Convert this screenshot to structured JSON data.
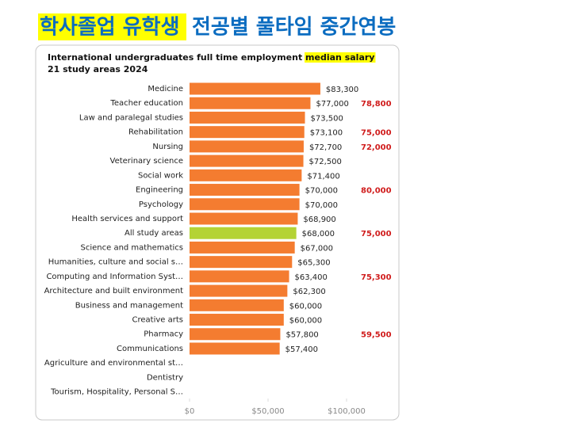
{
  "slide_title": {
    "highlight": "학사졸업 유학생",
    "rest": "전공별 풀타임 중간연봉"
  },
  "chart_data": {
    "type": "bar",
    "orientation": "horizontal",
    "title": {
      "text": "International undergraduates full time employment",
      "highlight": "median salary"
    },
    "subtitle": "21 study areas 2024",
    "categories": [
      "Medicine",
      "Teacher education",
      "Law and paralegal studies",
      "Rehabilitation",
      "Nursing",
      "Veterinary science",
      "Social work",
      "Engineering",
      "Psychology",
      "Health services and support",
      "All study areas",
      "Science and mathematics",
      "Humanities, culture and social s…",
      "Computing and Information Syst…",
      "Architecture and built environment",
      "Business and management",
      "Creative arts",
      "Pharmacy",
      "Communications",
      "Agriculture and environmental st…",
      "Dentistry",
      "Tourism, Hospitality, Personal S…"
    ],
    "values": [
      83300,
      77000,
      73500,
      73100,
      72700,
      72500,
      71400,
      70000,
      70000,
      68900,
      68000,
      67000,
      65300,
      63400,
      62300,
      60000,
      60000,
      57800,
      57400,
      null,
      null,
      null
    ],
    "value_labels": [
      "$83,300",
      "$77,000",
      "$73,500",
      "$73,100",
      "$72,700",
      "$72,500",
      "$71,400",
      "$70,000",
      "$70,000",
      "$68,900",
      "$68,000",
      "$67,000",
      "$65,300",
      "$63,400",
      "$62,300",
      "$60,000",
      "$60,000",
      "$57,800",
      "$57,400",
      null,
      null,
      null
    ],
    "colors": [
      "#f47c30",
      "#f47c30",
      "#f47c30",
      "#f47c30",
      "#f47c30",
      "#f47c30",
      "#f47c30",
      "#f47c30",
      "#f47c30",
      "#f47c30",
      "#b4d335",
      "#f47c30",
      "#f47c30",
      "#f47c30",
      "#f47c30",
      "#f47c30",
      "#f47c30",
      "#f47c30",
      "#f47c30",
      "#f47c30",
      "#f47c30",
      "#f47c30"
    ],
    "annotation_values": [
      null,
      78800,
      null,
      75000,
      72000,
      null,
      null,
      80000,
      null,
      null,
      75000,
      null,
      null,
      75300,
      null,
      null,
      null,
      59500,
      null,
      null,
      null,
      null
    ],
    "annotation_labels": [
      null,
      "78,800",
      null,
      "75,000",
      "72,000",
      null,
      null,
      "80,000",
      null,
      null,
      "75,000",
      null,
      null,
      "75,300",
      null,
      null,
      null,
      "59,500",
      null,
      null,
      null,
      null
    ],
    "annotation_color": "#d01c1c",
    "xlim": [
      0,
      100000
    ],
    "xticks": [
      {
        "value": 0,
        "label": "$0"
      },
      {
        "value": 50000,
        "label": "$50,000"
      },
      {
        "value": 100000,
        "label": "$100,000"
      }
    ]
  }
}
